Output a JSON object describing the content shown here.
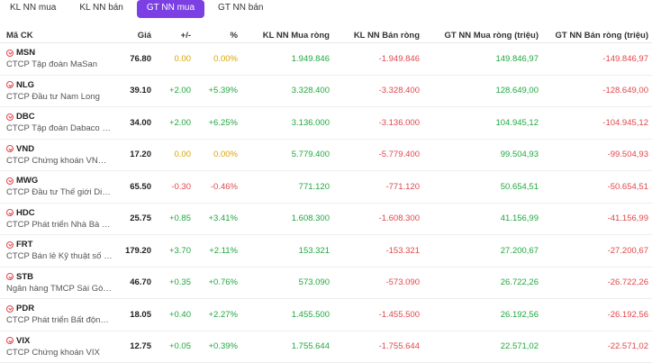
{
  "tabs": [
    {
      "label": "KL NN mua",
      "active": false
    },
    {
      "label": "KL NN bán",
      "active": false
    },
    {
      "label": "GT NN mua",
      "active": true
    },
    {
      "label": "GT NN bán",
      "active": false
    }
  ],
  "headers": {
    "code": "Mã CK",
    "price": "Giá",
    "change": "+/-",
    "pct": "%",
    "kl_mua": "KL NN Mua ròng",
    "kl_ban": "KL NN Bán ròng",
    "gt_mua": "GT NN Mua ròng (triệu)",
    "gt_ban": "GT NN Bán ròng (triệu)"
  },
  "rows": [
    {
      "code": "MSN",
      "name": "CTCP Tập đoàn MaSan",
      "price": "76.80",
      "change": "0.00",
      "pct": "0.00%",
      "kl_mua": "1.949.846",
      "kl_ban": "-1.949.846",
      "gt_mua": "149.846,97",
      "gt_ban": "-149.846,97",
      "trend": "yellow"
    },
    {
      "code": "NLG",
      "name": "CTCP Đầu tư Nam Long",
      "price": "39.10",
      "change": "+2.00",
      "pct": "+5.39%",
      "kl_mua": "3.328.400",
      "kl_ban": "-3.328.400",
      "gt_mua": "128.649,00",
      "gt_ban": "-128.649,00",
      "trend": "green"
    },
    {
      "code": "DBC",
      "name": "CTCP Tập đoàn Dabaco Vi...",
      "price": "34.00",
      "change": "+2.00",
      "pct": "+6.25%",
      "kl_mua": "3.136.000",
      "kl_ban": "-3.136.000",
      "gt_mua": "104.945,12",
      "gt_ban": "-104.945,12",
      "trend": "green"
    },
    {
      "code": "VND",
      "name": "CTCP Chứng khoán VNDIR...",
      "price": "17.20",
      "change": "0.00",
      "pct": "0.00%",
      "kl_mua": "5.779.400",
      "kl_ban": "-5.779.400",
      "gt_mua": "99.504,93",
      "gt_ban": "-99.504,93",
      "trend": "yellow"
    },
    {
      "code": "MWG",
      "name": "CTCP Đầu tư Thế giới Di độ...",
      "price": "65.50",
      "change": "-0.30",
      "pct": "-0.46%",
      "kl_mua": "771.120",
      "kl_ban": "-771.120",
      "gt_mua": "50.654,51",
      "gt_ban": "-50.654,51",
      "trend": "red"
    },
    {
      "code": "HDC",
      "name": "CTCP Phát triển Nhà Bà Rịa...",
      "price": "25.75",
      "change": "+0.85",
      "pct": "+3.41%",
      "kl_mua": "1.608.300",
      "kl_ban": "-1.608.300",
      "gt_mua": "41.156,99",
      "gt_ban": "-41.156,99",
      "trend": "green"
    },
    {
      "code": "FRT",
      "name": "CTCP Bán lẻ Kỹ thuật số FPT",
      "price": "179.20",
      "change": "+3.70",
      "pct": "+2.11%",
      "kl_mua": "153.321",
      "kl_ban": "-153.321",
      "gt_mua": "27.200,67",
      "gt_ban": "-27.200,67",
      "trend": "green"
    },
    {
      "code": "STB",
      "name": "Ngân hàng TMCP Sài Gòn ...",
      "price": "46.70",
      "change": "+0.35",
      "pct": "+0.76%",
      "kl_mua": "573.090",
      "kl_ban": "-573.090",
      "gt_mua": "26.722,26",
      "gt_ban": "-26.722,26",
      "trend": "green"
    },
    {
      "code": "PDR",
      "name": "CTCP Phát triển Bất động s...",
      "price": "18.05",
      "change": "+0.40",
      "pct": "+2.27%",
      "kl_mua": "1.455.500",
      "kl_ban": "-1.455.500",
      "gt_mua": "26.192,56",
      "gt_ban": "-26.192,56",
      "trend": "green"
    },
    {
      "code": "VIX",
      "name": "CTCP Chứng khoán VIX",
      "price": "12.75",
      "change": "+0.05",
      "pct": "+0.39%",
      "kl_mua": "1.755.644",
      "kl_ban": "-1.755.644",
      "gt_mua": "22.571,02",
      "gt_ban": "-22.571,02",
      "trend": "green"
    }
  ],
  "colors": {
    "accent": "#7b3fe4",
    "up": "#1fa83f",
    "down": "#e0474c",
    "ref": "#d9a400"
  }
}
